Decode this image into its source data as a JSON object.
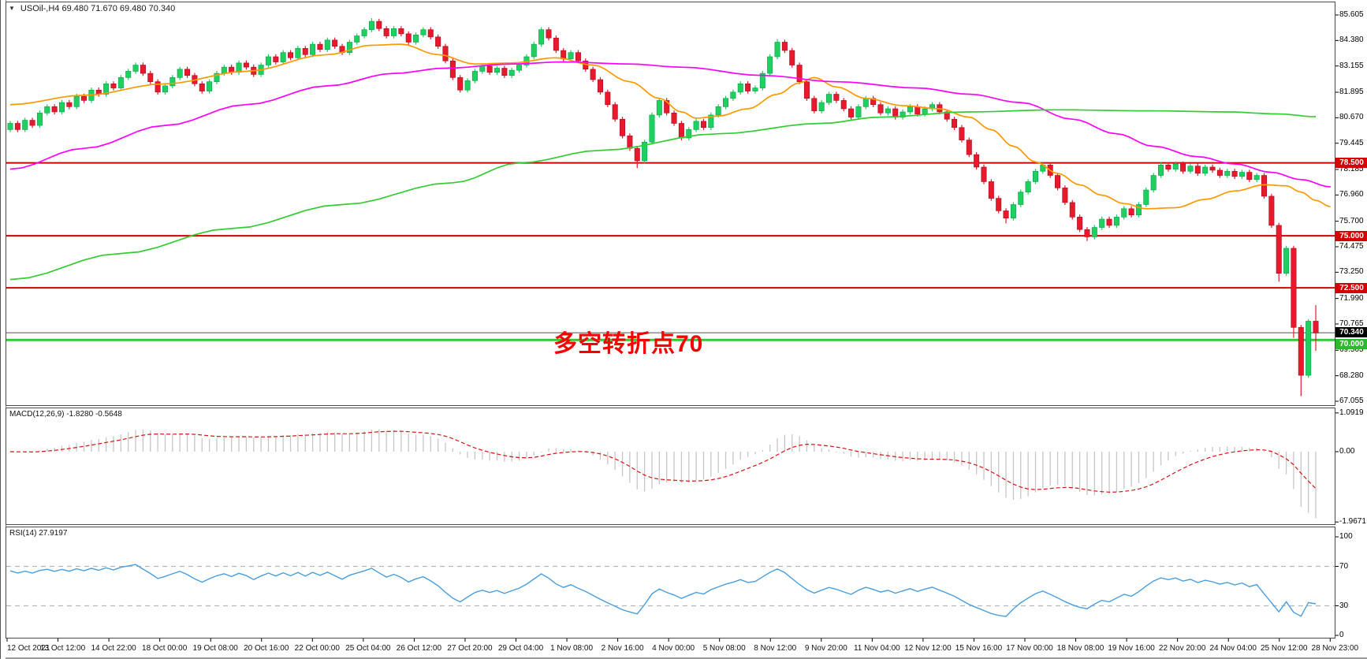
{
  "window": {
    "title": "USOil-,H4  69.480 71.670 69.480 70.340",
    "icons": {
      "symbol_dropdown": "▼"
    }
  },
  "chart_data": {
    "type": "candlestick",
    "symbol": "USOil-",
    "timeframe": "H4",
    "ohlc": {
      "open": "69.480",
      "high": "71.670",
      "low": "69.480",
      "close": "70.340"
    },
    "price_axis": {
      "ticks": [
        "85.605",
        "84.380",
        "83.155",
        "81.895",
        "80.670",
        "79.445",
        "78.185",
        "76.960",
        "75.700",
        "74.475",
        "73.250",
        "71.990",
        "70.765",
        "69.505",
        "68.280",
        "67.055"
      ]
    },
    "horizontal_lines": [
      {
        "price": 78.5,
        "label": "78.500"
      },
      {
        "price": 75.0,
        "label": "75.000"
      },
      {
        "price": 72.5,
        "label": "72.500"
      }
    ],
    "support_line": {
      "price": 70.0,
      "label": "70.000"
    },
    "current_price": {
      "price": 70.34,
      "label": "70.340"
    },
    "annotation": {
      "text": "多空转折点70"
    },
    "candles": {
      "first_open": 80.1,
      "closes": [
        80.4,
        80.1,
        80.55,
        80.3,
        80.9,
        81.2,
        80.95,
        81.4,
        81.2,
        81.7,
        81.5,
        82.0,
        81.8,
        82.3,
        82.1,
        82.6,
        82.9,
        83.2,
        82.8,
        82.4,
        81.9,
        82.2,
        82.6,
        83.0,
        82.7,
        82.3,
        81.95,
        82.4,
        82.8,
        83.1,
        82.85,
        83.3,
        83.1,
        82.75,
        83.2,
        83.6,
        83.35,
        83.8,
        83.55,
        84.0,
        83.7,
        84.2,
        83.95,
        84.4,
        84.1,
        83.8,
        84.3,
        84.6,
        84.9,
        85.3,
        84.95,
        84.6,
        84.95,
        84.7,
        84.3,
        84.65,
        84.9,
        84.55,
        84.1,
        83.4,
        82.6,
        82.0,
        82.45,
        82.9,
        83.15,
        82.85,
        83.05,
        82.7,
        82.95,
        83.2,
        83.6,
        84.2,
        84.9,
        84.5,
        83.9,
        83.5,
        83.8,
        83.4,
        83.0,
        82.5,
        81.9,
        81.3,
        80.6,
        79.8,
        79.2,
        78.6,
        79.5,
        80.8,
        81.5,
        80.9,
        80.4,
        79.7,
        80.1,
        80.5,
        80.2,
        80.8,
        81.2,
        81.6,
        81.9,
        82.3,
        81.95,
        82.1,
        82.8,
        83.6,
        84.3,
        83.9,
        83.2,
        82.4,
        81.6,
        81.0,
        81.4,
        81.8,
        81.5,
        81.1,
        80.7,
        81.2,
        81.6,
        81.3,
        80.9,
        81.1,
        80.7,
        80.95,
        81.2,
        80.85,
        81.1,
        81.3,
        80.95,
        80.6,
        80.2,
        79.6,
        78.9,
        78.3,
        77.6,
        76.8,
        76.2,
        75.85,
        76.5,
        77.1,
        77.6,
        78.1,
        78.4,
        77.9,
        77.3,
        76.6,
        75.9,
        75.3,
        74.95,
        75.4,
        75.8,
        75.5,
        75.9,
        76.3,
        76.0,
        76.5,
        77.2,
        77.9,
        78.4,
        78.2,
        78.45,
        78.1,
        78.35,
        78.0,
        78.3,
        78.15,
        77.9,
        78.1,
        77.85,
        78.05,
        77.7,
        77.9,
        76.9,
        75.5,
        73.2,
        74.4,
        70.6,
        68.3,
        70.9,
        70.34
      ],
      "wick_overrides": {
        "49": {
          "high": 85.45
        },
        "85": {
          "low": 78.25
        },
        "104": {
          "high": 84.45
        },
        "135": {
          "low": 75.6
        },
        "146": {
          "low": 74.75
        },
        "172": {
          "low": 72.8
        },
        "174": {
          "low": 70.1
        },
        "175": {
          "low": 67.3
        },
        "176": {
          "high": 71.0
        },
        "177": {
          "high": 71.67,
          "low": 69.48
        }
      }
    },
    "moving_averages": [
      {
        "name": "ma-fast-orange",
        "color": "#ff9900",
        "points": [
          [
            0,
            81.3
          ],
          [
            10,
            81.75
          ],
          [
            21,
            82.3
          ],
          [
            32,
            82.9
          ],
          [
            43,
            83.7
          ],
          [
            49,
            84.15
          ],
          [
            53,
            84.2
          ],
          [
            58,
            83.7
          ],
          [
            63,
            83.25
          ],
          [
            68,
            83.3
          ],
          [
            74,
            83.55
          ],
          [
            79,
            83.2
          ],
          [
            84,
            82.4
          ],
          [
            88,
            81.6
          ],
          [
            91,
            80.95
          ],
          [
            93,
            80.65
          ],
          [
            96,
            80.75
          ],
          [
            100,
            81.1
          ],
          [
            104,
            81.8
          ],
          [
            107,
            82.35
          ],
          [
            109,
            82.6
          ],
          [
            112,
            82.15
          ],
          [
            116,
            81.6
          ],
          [
            121,
            81.25
          ],
          [
            126,
            81.1
          ],
          [
            130,
            80.7
          ],
          [
            133,
            80.1
          ],
          [
            136,
            79.3
          ],
          [
            139,
            78.55
          ],
          [
            142,
            78.0
          ],
          [
            145,
            77.45
          ],
          [
            148,
            76.95
          ],
          [
            151,
            76.55
          ],
          [
            154,
            76.3
          ],
          [
            158,
            76.35
          ],
          [
            162,
            76.75
          ],
          [
            166,
            77.15
          ],
          [
            170,
            77.45
          ],
          [
            173,
            77.4
          ],
          [
            175,
            77.1
          ],
          [
            177,
            76.7
          ],
          [
            179,
            76.4
          ]
        ]
      },
      {
        "name": "ma-mid-magenta",
        "color": "#ff00ff",
        "points": [
          [
            0,
            78.2
          ],
          [
            10,
            79.2
          ],
          [
            21,
            80.3
          ],
          [
            32,
            81.3
          ],
          [
            43,
            82.2
          ],
          [
            52,
            82.8
          ],
          [
            59,
            83.05
          ],
          [
            68,
            83.25
          ],
          [
            75,
            83.35
          ],
          [
            84,
            83.25
          ],
          [
            91,
            83.1
          ],
          [
            102,
            82.7
          ],
          [
            112,
            82.4
          ],
          [
            123,
            82.1
          ],
          [
            130,
            81.8
          ],
          [
            137,
            81.4
          ],
          [
            144,
            80.6
          ],
          [
            150,
            79.9
          ],
          [
            155,
            79.3
          ],
          [
            161,
            78.8
          ],
          [
            166,
            78.45
          ],
          [
            171,
            78.05
          ],
          [
            175,
            77.7
          ],
          [
            179,
            77.35
          ]
        ]
      },
      {
        "name": "ma-slow-green",
        "color": "#33cc33",
        "points": [
          [
            0,
            72.9
          ],
          [
            15,
            74.15
          ],
          [
            30,
            75.35
          ],
          [
            45,
            76.5
          ],
          [
            60,
            77.55
          ],
          [
            69,
            78.5
          ],
          [
            80,
            79.1
          ],
          [
            96,
            79.9
          ],
          [
            110,
            80.4
          ],
          [
            118,
            80.7
          ],
          [
            130,
            80.95
          ],
          [
            142,
            81.05
          ],
          [
            155,
            81.0
          ],
          [
            165,
            80.95
          ],
          [
            172,
            80.85
          ],
          [
            177,
            80.72
          ]
        ]
      }
    ],
    "macd": {
      "label_full": "MACD(12,26,9) -1.8280 -0.5648",
      "params": [
        12,
        26,
        9
      ],
      "main_value": -1.828,
      "signal_value": -0.5648,
      "axis_ticks": [
        "1.0919",
        "0.00",
        "-1.9671"
      ]
    },
    "rsi": {
      "label_full": "RSI(14) 27.9197",
      "period": 14,
      "value": 27.9197,
      "axis_ticks": [
        "100",
        "70",
        "30",
        "0"
      ],
      "levels": [
        70,
        30
      ]
    },
    "time_axis": [
      "12 Oct 2021",
      "13 Oct 12:00",
      "14 Oct 22:00",
      "18 Oct 00:00",
      "19 Oct 08:00",
      "20 Oct 16:00",
      "22 Oct 00:00",
      "25 Oct 04:00",
      "26 Oct 12:00",
      "27 Oct 20:00",
      "29 Oct 04:00",
      "1 Nov 08:00",
      "2 Nov 16:00",
      "4 Nov 00:00",
      "5 Nov 08:00",
      "8 Nov 12:00",
      "9 Nov 20:00",
      "11 Nov 04:00",
      "12 Nov 12:00",
      "15 Nov 16:00",
      "17 Nov 00:00",
      "18 Nov 08:00",
      "19 Nov 16:00",
      "22 Nov 20:00",
      "24 Nov 04:00",
      "25 Nov 12:00",
      "28 Nov 23:00"
    ]
  },
  "colors": {
    "up_candle": "#1ed05f",
    "up_candle_border": "#0b9f48",
    "down_candle": "#e8182d",
    "down_candle_border": "#a50d1d",
    "resistance_line": "#d40000",
    "resistance_tag_bg": "#d40000",
    "support_line": "#2ecc2e",
    "support_tag_bg": "#2db82d",
    "current_price_line": "#808080",
    "current_price_tag_bg": "#000000",
    "macd_histogram": "#c6c6c6",
    "macd_signal": "#dd1111",
    "rsi_line": "#4a9ede",
    "rsi_level": "#b8b8b8",
    "annotation_text": "#f60000"
  }
}
